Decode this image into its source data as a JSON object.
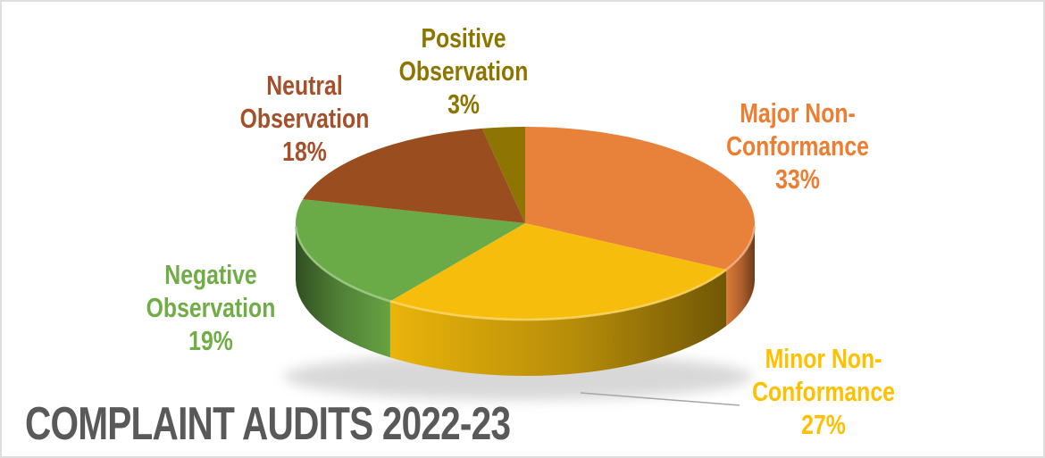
{
  "chart_data": {
    "type": "pie",
    "style": "3d",
    "title": "COMPLAINT AUDITS 2022-23",
    "title_color": "#595959",
    "start_angle_deg": 0,
    "direction": "clockwise",
    "legend_position": "none",
    "data_labels": "outside, category name + percent",
    "total_pct": 100,
    "slices": [
      {
        "label": "Major Non-Conformance",
        "pct": 33,
        "color": "#E8813A",
        "label_color": "#ED7D31",
        "label_lines": [
          "Major Non-",
          "Conformance",
          "33%"
        ]
      },
      {
        "label": "Minor Non-Conformance",
        "pct": 27,
        "color": "#F6BD0C",
        "label_color": "#FFC000",
        "label_lines": [
          "Minor Non-",
          "Conformance",
          "27%"
        ],
        "leader_line": true
      },
      {
        "label": "Negative Observation",
        "pct": 19,
        "color": "#6BAB47",
        "label_color": "#70AD47",
        "label_lines": [
          "Negative",
          "Observation",
          "19%"
        ]
      },
      {
        "label": "Neutral Observation",
        "pct": 18,
        "color": "#9A4D1E",
        "label_color": "#A4512B",
        "label_lines": [
          "Neutral",
          "Observation",
          "18%"
        ]
      },
      {
        "label": "Positive Observation",
        "pct": 3,
        "color": "#8D7403",
        "label_color": "#8D7500",
        "label_lines": [
          "Positive",
          "Observation",
          "3%"
        ]
      }
    ]
  }
}
